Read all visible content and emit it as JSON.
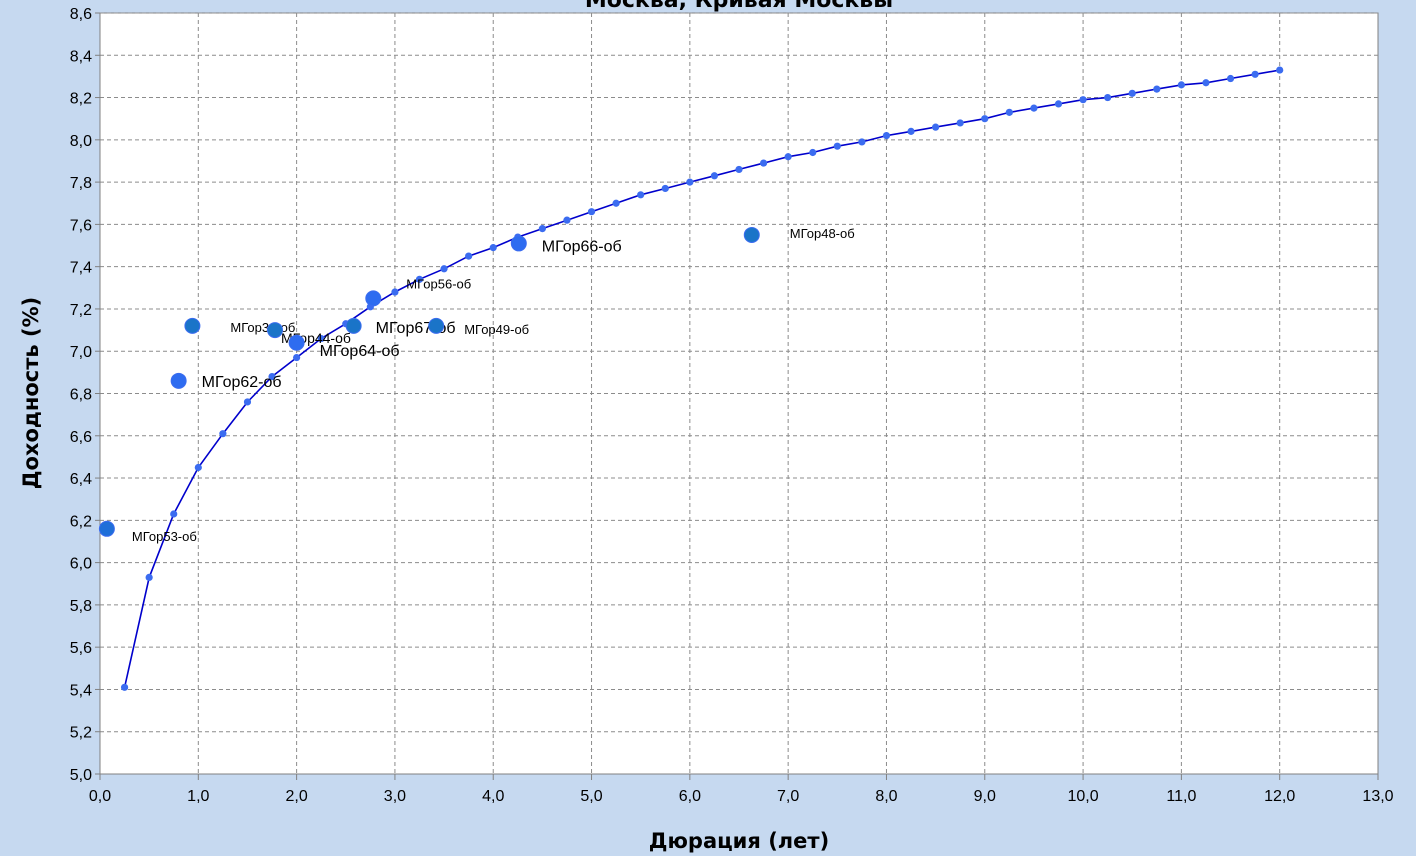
{
  "chart_data": {
    "type": "scatter",
    "title": "Москва, Кривая Москвы",
    "xlabel": "Дюрация (лет)",
    "ylabel": "Доходность (%)",
    "xlim": [
      0,
      13
    ],
    "ylim": [
      5.0,
      8.6
    ],
    "x_ticks": [
      "0,0",
      "1,0",
      "2,0",
      "3,0",
      "4,0",
      "5,0",
      "6,0",
      "7,0",
      "8,0",
      "9,0",
      "10,0",
      "11,0",
      "12,0",
      "13,0"
    ],
    "y_ticks": [
      "5,0",
      "5,2",
      "5,4",
      "5,6",
      "5,8",
      "6,0",
      "6,2",
      "6,4",
      "6,6",
      "6,8",
      "7,0",
      "7,2",
      "7,4",
      "7,6",
      "7,8",
      "8,0",
      "8,2",
      "8,4",
      "8,6"
    ],
    "grid": true,
    "curve": {
      "color": "#0000cc",
      "marker_color": "#3b6cf0",
      "points": [
        [
          0.25,
          5.41
        ],
        [
          0.5,
          5.93
        ],
        [
          0.75,
          6.23
        ],
        [
          1.0,
          6.45
        ],
        [
          1.25,
          6.61
        ],
        [
          1.5,
          6.76
        ],
        [
          1.75,
          6.88
        ],
        [
          2.0,
          6.97
        ],
        [
          2.25,
          7.06
        ],
        [
          2.5,
          7.13
        ],
        [
          2.75,
          7.21
        ],
        [
          3.0,
          7.28
        ],
        [
          3.25,
          7.34
        ],
        [
          3.5,
          7.39
        ],
        [
          3.75,
          7.45
        ],
        [
          4.0,
          7.49
        ],
        [
          4.25,
          7.54
        ],
        [
          4.5,
          7.58
        ],
        [
          4.75,
          7.62
        ],
        [
          5.0,
          7.66
        ],
        [
          5.25,
          7.7
        ],
        [
          5.5,
          7.74
        ],
        [
          5.75,
          7.77
        ],
        [
          6.0,
          7.8
        ],
        [
          6.25,
          7.83
        ],
        [
          6.5,
          7.86
        ],
        [
          6.75,
          7.89
        ],
        [
          7.0,
          7.92
        ],
        [
          7.25,
          7.94
        ],
        [
          7.5,
          7.97
        ],
        [
          7.75,
          7.99
        ],
        [
          8.0,
          8.02
        ],
        [
          8.25,
          8.04
        ],
        [
          8.5,
          8.06
        ],
        [
          8.75,
          8.08
        ],
        [
          9.0,
          8.1
        ],
        [
          9.25,
          8.13
        ],
        [
          9.5,
          8.15
        ],
        [
          9.75,
          8.17
        ],
        [
          10.0,
          8.19
        ],
        [
          10.25,
          8.2
        ],
        [
          10.5,
          8.22
        ],
        [
          10.75,
          8.24
        ],
        [
          11.0,
          8.26
        ],
        [
          11.25,
          8.27
        ],
        [
          11.5,
          8.29
        ],
        [
          11.75,
          8.31
        ],
        [
          12.0,
          8.33
        ]
      ]
    },
    "bonds": [
      {
        "name": "МГор53-об",
        "x": 0.07,
        "y": 6.16,
        "color": "#1f6fd8",
        "label_size": "small"
      },
      {
        "name": "МГор62-об",
        "x": 0.8,
        "y": 6.86,
        "color": "#2e6cf0",
        "label_size": "large"
      },
      {
        "name": "МГор39-об",
        "x": 0.94,
        "y": 7.12,
        "color": "#1a74c8",
        "label_size": "small"
      },
      {
        "name": "МГор44-об",
        "x": 1.78,
        "y": 7.1,
        "color": "#1a74c8",
        "label_size": "medium"
      },
      {
        "name": "МГор64-об",
        "x": 2.0,
        "y": 7.04,
        "color": "#2e6cf0",
        "label_size": "large"
      },
      {
        "name": "МГор67-об",
        "x": 2.58,
        "y": 7.12,
        "color": "#1a74c8",
        "label_size": "large"
      },
      {
        "name": "МГор56-об",
        "x": 2.78,
        "y": 7.25,
        "color": "#2e6cf0",
        "label_size": "small"
      },
      {
        "name": "МГор49-об",
        "x": 3.42,
        "y": 7.12,
        "color": "#1a74c8",
        "label_size": "small"
      },
      {
        "name": "МГор66-об",
        "x": 4.26,
        "y": 7.51,
        "color": "#2e6cf0",
        "label_size": "large"
      },
      {
        "name": "МГор48-об",
        "x": 6.63,
        "y": 7.55,
        "color": "#1a74c8",
        "label_size": "small"
      }
    ]
  }
}
